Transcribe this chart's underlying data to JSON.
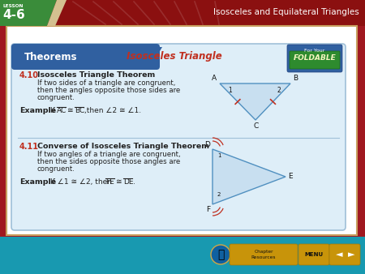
{
  "bg_color": "#a01820",
  "page_bg": "#ffffff",
  "header_dark": "#8b1010",
  "green_trap_color": "#3a8c3a",
  "lesson_label": "LESSON",
  "lesson_number": "4-6",
  "header_title": "Isosceles and Equilateral Triangles",
  "theorems_box_bg": "#deeef8",
  "theorems_box_border": "#a0c0d8",
  "theorems_header_bg": "#3060a0",
  "theorems_title": "Theorems",
  "isosceles_title": "Isosceles Triangle",
  "foldable_bg": "#3060a0",
  "foldable_green": "#2e8b2e",
  "foldable_top": "For Your",
  "foldable_bottom": "FOLDABLE",
  "divider_color": "#a0c0d8",
  "theorem_num_color": "#c03020",
  "text_color": "#222222",
  "example_bold_color": "#111111",
  "tri1_face": "#c8dff0",
  "tri1_edge": "#5090c0",
  "tri1_tick": "#c03020",
  "tri2_face": "#c8dff0",
  "tri2_edge": "#5090c0",
  "tri2_arc": "#c03020",
  "bottom_bar": "#1899b0",
  "bottom_nav_bg": "#c8940a",
  "bottom_nav_border": "#a07808"
}
